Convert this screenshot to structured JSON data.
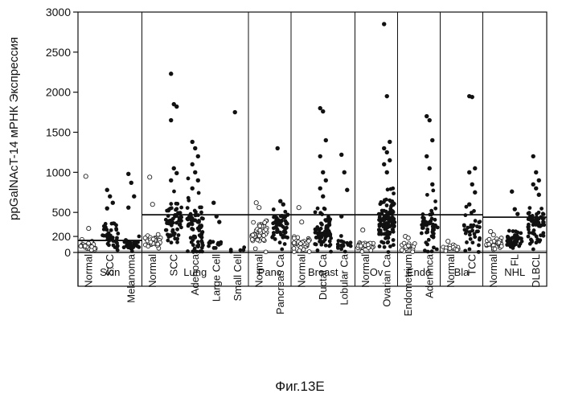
{
  "chart_data": {
    "type": "scatter",
    "ylabel": "ppGalNAcT-14 мРНК Экспрессия",
    "caption": "Фиг.13E",
    "ylim": [
      0,
      3000
    ],
    "yticks": [
      0,
      200,
      500,
      1000,
      1500,
      2000,
      2500,
      3000
    ],
    "grid": false,
    "groups": [
      {
        "name": "Skin",
        "start": 0,
        "end": 3,
        "threshold": 150
      },
      {
        "name": "Lung",
        "start": 3,
        "end": 8,
        "threshold": 470
      },
      {
        "name": "Panc",
        "start": 8,
        "end": 10,
        "threshold": 470
      },
      {
        "name": "Breast",
        "start": 10,
        "end": 13,
        "threshold": 470
      },
      {
        "name": "Ov",
        "start": 13,
        "end": 15,
        "threshold": 470
      },
      {
        "name": "Endo",
        "start": 15,
        "end": 17,
        "threshold": 470
      },
      {
        "name": "Bla",
        "start": 17,
        "end": 19,
        "threshold": 470
      },
      {
        "name": "NHL",
        "start": 19,
        "end": 22,
        "threshold": 440
      }
    ],
    "categories": [
      {
        "name": "Normal",
        "hollow": true,
        "median": 90,
        "spread": 60,
        "n": 35,
        "extra": [
          950,
          300
        ]
      },
      {
        "name": "SCC",
        "hollow": false,
        "median": 220,
        "spread": 160,
        "n": 40,
        "extra": [
          780,
          700,
          620,
          550
        ]
      },
      {
        "name": "Melanoma",
        "hollow": false,
        "median": 90,
        "spread": 70,
        "n": 35,
        "extra": [
          980,
          870,
          700,
          560
        ]
      },
      {
        "name": "Normal",
        "hollow": true,
        "median": 140,
        "spread": 60,
        "n": 35,
        "extra": [
          940,
          600
        ]
      },
      {
        "name": "SCC",
        "hollow": false,
        "median": 380,
        "spread": 250,
        "n": 60,
        "extra": [
          2230,
          1850,
          1820,
          1650,
          1050,
          990,
          900
        ]
      },
      {
        "name": "Adenoca",
        "hollow": false,
        "median": 330,
        "spread": 260,
        "n": 75,
        "extra": [
          1380,
          1300,
          1200,
          1100,
          1000,
          900,
          800
        ]
      },
      {
        "name": "Large Cell",
        "hollow": false,
        "median": 90,
        "spread": 60,
        "n": 12,
        "extra": [
          620,
          450,
          380
        ]
      },
      {
        "name": "Small Cell",
        "hollow": false,
        "median": 30,
        "spread": 20,
        "n": 5,
        "extra": [
          1750
        ]
      },
      {
        "name": "Normal",
        "hollow": true,
        "median": 250,
        "spread": 140,
        "n": 45,
        "extra": [
          620,
          560
        ]
      },
      {
        "name": "Pancreas Ca",
        "hollow": false,
        "median": 300,
        "spread": 180,
        "n": 55,
        "extra": [
          1300,
          640,
          600
        ]
      },
      {
        "name": "Normal",
        "hollow": true,
        "median": 100,
        "spread": 70,
        "n": 35,
        "extra": [
          560,
          380
        ]
      },
      {
        "name": "Ductal Ca",
        "hollow": false,
        "median": 300,
        "spread": 230,
        "n": 70,
        "extra": [
          1800,
          1760,
          1400,
          1200,
          1000,
          900,
          800,
          700
        ]
      },
      {
        "name": "Lobular Ca",
        "hollow": false,
        "median": 80,
        "spread": 70,
        "n": 18,
        "extra": [
          1220,
          1000,
          780,
          450
        ]
      },
      {
        "name": "Normal",
        "hollow": true,
        "median": 80,
        "spread": 60,
        "n": 25,
        "extra": [
          280
        ]
      },
      {
        "name": "Ovarian Ca",
        "hollow": false,
        "median": 380,
        "spread": 280,
        "n": 110,
        "extra": [
          2850,
          1950,
          1380,
          1300,
          1250,
          1150,
          1100,
          1000
        ]
      },
      {
        "name": "Endometrium",
        "hollow": true,
        "median": 70,
        "spread": 50,
        "n": 15,
        "extra": [
          200,
          180
        ]
      },
      {
        "name": "Adenmca",
        "hollow": false,
        "median": 300,
        "spread": 250,
        "n": 55,
        "extra": [
          1700,
          1650,
          1400,
          1200,
          1050,
          850
        ]
      },
      {
        "name": "Normal",
        "hollow": true,
        "median": 60,
        "spread": 40,
        "n": 15,
        "extra": [
          140
        ]
      },
      {
        "name": "TCC",
        "hollow": false,
        "median": 250,
        "spread": 220,
        "n": 35,
        "extra": [
          1950,
          1940,
          1050,
          1000,
          850,
          750,
          600
        ]
      },
      {
        "name": "Normal",
        "hollow": true,
        "median": 110,
        "spread": 60,
        "n": 35,
        "extra": [
          260,
          220
        ]
      },
      {
        "name": "FL",
        "hollow": false,
        "median": 160,
        "spread": 110,
        "n": 40,
        "extra": [
          760,
          540,
          480
        ]
      },
      {
        "name": "DLBCL",
        "hollow": false,
        "median": 320,
        "spread": 220,
        "n": 60,
        "extra": [
          1200,
          1000,
          900,
          850,
          800,
          720
        ]
      }
    ]
  }
}
